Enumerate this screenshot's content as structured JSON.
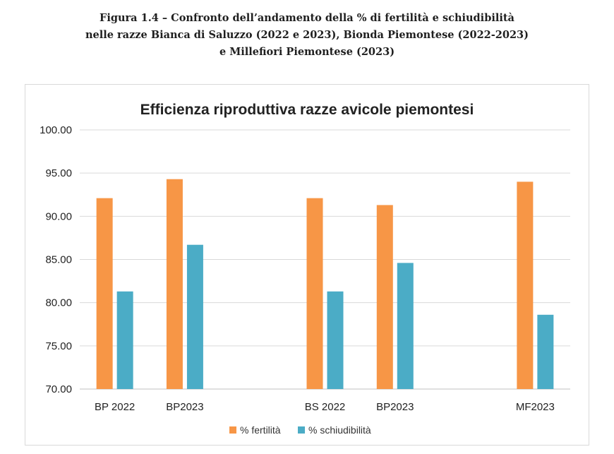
{
  "figure_caption": {
    "line1": "Figura 1.4 – Confronto dell’andamento della % di fertilità e schiudibilità",
    "line2": "nelle razze Bianca di Saluzzo (2022 e 2023), Bionda Piemontese (2022-2023)",
    "line3": "e Millefiori Piemontese (2023)"
  },
  "chart_data": {
    "type": "bar",
    "title": "Efficienza riproduttiva razze avicole piemontesi",
    "categories": [
      "BP 2022",
      "BP2023",
      "",
      "BS 2022",
      "BP2023",
      "",
      "MF2023"
    ],
    "series": [
      {
        "name": "% fertilità",
        "color": "#F79646",
        "values": [
          92.1,
          94.3,
          null,
          92.1,
          91.3,
          null,
          94.0
        ]
      },
      {
        "name": "% schiudibilità",
        "color": "#4BACC6",
        "values": [
          81.3,
          86.7,
          null,
          81.3,
          84.6,
          null,
          78.6
        ]
      }
    ],
    "ylim": [
      70,
      100
    ],
    "yticks": [
      "70.00",
      "75.00",
      "80.00",
      "85.00",
      "90.00",
      "95.00",
      "100.00"
    ],
    "xlabel": "",
    "ylabel": "",
    "grid": true,
    "legend_position": "bottom"
  }
}
